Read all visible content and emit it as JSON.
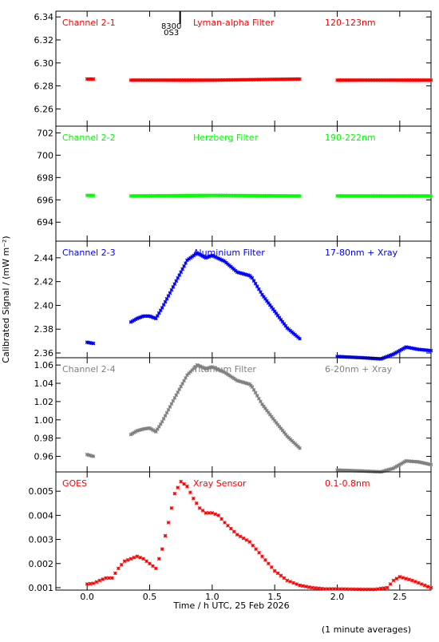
{
  "figure": {
    "ylabel": "Calibrated Signal / (mW m⁻²)",
    "xlabel": "Time / h UTC, 25 Feb 2026",
    "footnote": "(1 minute averages)",
    "xlim": [
      -0.25,
      2.75
    ],
    "xticks": [
      0.0,
      0.5,
      1.0,
      1.5,
      2.0,
      2.5
    ],
    "xtick_labels": [
      "0.0",
      "0.5",
      "1.0",
      "1.5",
      "2.0",
      "2.5"
    ],
    "marker_text": [
      "8300",
      "0S3"
    ],
    "marker_x": 0.75
  },
  "chart_data": [
    {
      "type": "scatter",
      "panel_labels": [
        "Channel 2-1",
        "Lyman-alpha Filter",
        "120-123nm"
      ],
      "color": "#ff0000",
      "ylim": [
        6.245,
        6.345
      ],
      "yticks": [
        6.26,
        6.28,
        6.3,
        6.32,
        6.34
      ],
      "ytick_labels": [
        "6.26",
        "6.28",
        "6.30",
        "6.32",
        "6.34"
      ],
      "segments": [
        {
          "x": [
            0.0,
            0.05
          ],
          "y": [
            6.286,
            6.286
          ]
        },
        {
          "x": [
            0.35,
            1.0,
            1.7
          ],
          "y": [
            6.285,
            6.285,
            6.286
          ]
        },
        {
          "x": [
            2.0,
            2.75
          ],
          "y": [
            6.285,
            6.285
          ]
        }
      ]
    },
    {
      "type": "scatter",
      "panel_labels": [
        "Channel 2-2",
        "Herzberg Filter",
        "190-222nm"
      ],
      "color": "#00ff00",
      "ylim": [
        692.3,
        702.6
      ],
      "yticks": [
        694,
        696,
        698,
        700,
        702
      ],
      "ytick_labels": [
        "694",
        "696",
        "698",
        "700",
        "702"
      ],
      "segments": [
        {
          "x": [
            0.0,
            0.05
          ],
          "y": [
            696.4,
            696.4
          ]
        },
        {
          "x": [
            0.35,
            1.0,
            1.7
          ],
          "y": [
            696.35,
            696.4,
            696.35
          ]
        },
        {
          "x": [
            2.0,
            2.75
          ],
          "y": [
            696.35,
            696.35
          ]
        }
      ]
    },
    {
      "type": "scatter",
      "panel_labels": [
        "Channel 2-3",
        "Aluminium Filter",
        "17-80nm + Xray"
      ],
      "color": "#0000ff",
      "ylim": [
        2.356,
        2.454
      ],
      "yticks": [
        2.36,
        2.38,
        2.4,
        2.42,
        2.44
      ],
      "ytick_labels": [
        "2.36",
        "2.38",
        "2.40",
        "2.42",
        "2.44"
      ],
      "segments": [
        {
          "x": [
            0.0,
            0.05
          ],
          "y": [
            2.369,
            2.368
          ]
        },
        {
          "x": [
            0.35,
            0.4,
            0.45,
            0.5,
            0.55,
            0.6,
            0.7,
            0.8,
            0.88,
            0.95,
            1.0,
            1.1,
            1.2,
            1.3,
            1.32,
            1.4,
            1.5,
            1.6,
            1.7
          ],
          "y": [
            2.386,
            2.389,
            2.391,
            2.391,
            2.389,
            2.398,
            2.418,
            2.438,
            2.444,
            2.44,
            2.442,
            2.437,
            2.428,
            2.425,
            2.423,
            2.409,
            2.395,
            2.381,
            2.372
          ]
        },
        {
          "x": [
            2.0,
            2.2,
            2.35,
            2.45,
            2.55,
            2.65,
            2.75
          ],
          "y": [
            2.357,
            2.356,
            2.355,
            2.359,
            2.365,
            2.363,
            2.362
          ]
        }
      ]
    },
    {
      "type": "scatter",
      "panel_labels": [
        "Channel 2-4",
        "Titanium Filter",
        "6-20nm + Xray"
      ],
      "color": "#808080",
      "ylim": [
        0.943,
        1.068
      ],
      "yticks": [
        0.96,
        0.98,
        1.0,
        1.02,
        1.04,
        1.06
      ],
      "ytick_labels": [
        "0.96",
        "0.98",
        "1.00",
        "1.02",
        "1.04",
        "1.06"
      ],
      "segments": [
        {
          "x": [
            0.0,
            0.05
          ],
          "y": [
            0.962,
            0.96
          ]
        },
        {
          "x": [
            0.35,
            0.4,
            0.45,
            0.5,
            0.55,
            0.6,
            0.7,
            0.8,
            0.88,
            0.95,
            1.0,
            1.1,
            1.2,
            1.3,
            1.32,
            1.4,
            1.5,
            1.6,
            1.7
          ],
          "y": [
            0.984,
            0.988,
            0.99,
            0.991,
            0.987,
            0.998,
            1.024,
            1.049,
            1.06,
            1.056,
            1.058,
            1.052,
            1.043,
            1.039,
            1.036,
            1.017,
            0.999,
            0.982,
            0.969
          ]
        },
        {
          "x": [
            2.0,
            2.2,
            2.35,
            2.45,
            2.55,
            2.65,
            2.75
          ],
          "y": [
            0.945,
            0.944,
            0.943,
            0.947,
            0.955,
            0.954,
            0.951
          ]
        }
      ]
    },
    {
      "type": "scatter",
      "panel_labels": [
        "GOES",
        "Xray Sensor",
        "0.1-0.8nm"
      ],
      "color": "#ff0000",
      "ylim": [
        0.0009,
        0.0058
      ],
      "yticks": [
        0.001,
        0.002,
        0.003,
        0.004,
        0.005
      ],
      "ytick_labels": [
        "0.001",
        "0.002",
        "0.003",
        "0.004",
        "0.005"
      ],
      "segments": [
        {
          "x": [
            0.0,
            0.05,
            0.1,
            0.15,
            0.2,
            0.25,
            0.3,
            0.4,
            0.45,
            0.5,
            0.55,
            0.6,
            0.65,
            0.7,
            0.75,
            0.8,
            0.85,
            0.9,
            0.95,
            1.0,
            1.05,
            1.1,
            1.2,
            1.3,
            1.4,
            1.5,
            1.6,
            1.7,
            1.8,
            1.9,
            2.0,
            2.2,
            2.3,
            2.4,
            2.45,
            2.5,
            2.6,
            2.7,
            2.75
          ],
          "y": [
            0.00115,
            0.00118,
            0.0013,
            0.0014,
            0.0014,
            0.0018,
            0.0021,
            0.0023,
            0.0022,
            0.002,
            0.0018,
            0.0026,
            0.0037,
            0.0049,
            0.0054,
            0.0052,
            0.0047,
            0.0043,
            0.0041,
            0.0041,
            0.004,
            0.0037,
            0.0032,
            0.0029,
            0.0023,
            0.0017,
            0.0013,
            0.0011,
            0.001,
            0.00095,
            0.00095,
            0.00093,
            0.00093,
            0.001,
            0.0013,
            0.00145,
            0.0013,
            0.0011,
            0.001
          ]
        }
      ]
    }
  ]
}
